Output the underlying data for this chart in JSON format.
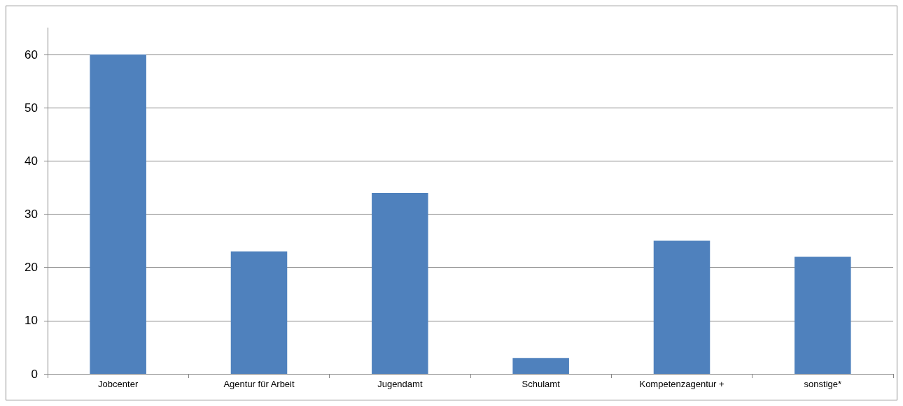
{
  "chart_data": {
    "type": "bar",
    "categories": [
      "Jobcenter",
      "Agentur für Arbeit",
      "Jugendamt",
      "Schulamt",
      "Kompetenzagentur +",
      "sonstige*"
    ],
    "values": [
      60,
      23,
      34,
      3,
      25,
      22
    ],
    "color": "#4f81bd",
    "ylim": [
      0,
      65
    ],
    "yticks": [
      0,
      10,
      20,
      30,
      40,
      50,
      60
    ],
    "grid": "y"
  }
}
